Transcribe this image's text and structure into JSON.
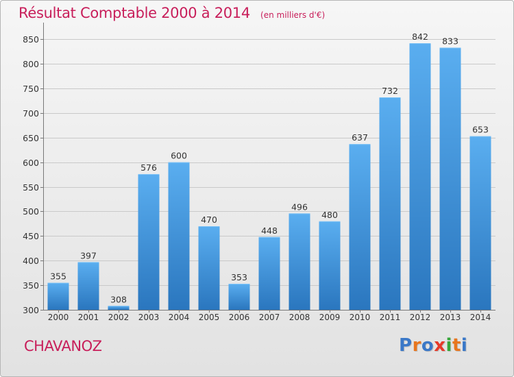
{
  "header": {
    "title": "Résultat Comptable 2000 à 2014",
    "unit": "(en milliers d'€)"
  },
  "footer": {
    "city": "CHAVANOZ",
    "logo": "Proxiti",
    "logo_colors": [
      "#3a78c8",
      "#e8761e",
      "#3a78c8",
      "#e53a2a",
      "#36a63a",
      "#e8761e",
      "#3a78c8"
    ]
  },
  "colors": {
    "bar_top": "#5aaef0",
    "bar_bottom": "#2a76be",
    "accent": "#c81e5a"
  },
  "chart_data": {
    "type": "bar",
    "categories": [
      "2000",
      "2001",
      "2002",
      "2003",
      "2004",
      "2005",
      "2006",
      "2007",
      "2008",
      "2009",
      "2010",
      "2011",
      "2012",
      "2013",
      "2014"
    ],
    "values": [
      355,
      397,
      308,
      576,
      600,
      470,
      353,
      448,
      496,
      480,
      637,
      732,
      842,
      833,
      653
    ],
    "yticks": [
      300,
      350,
      400,
      450,
      500,
      550,
      600,
      650,
      700,
      750,
      800,
      850
    ],
    "ylim": [
      300,
      870
    ],
    "grid": true
  }
}
